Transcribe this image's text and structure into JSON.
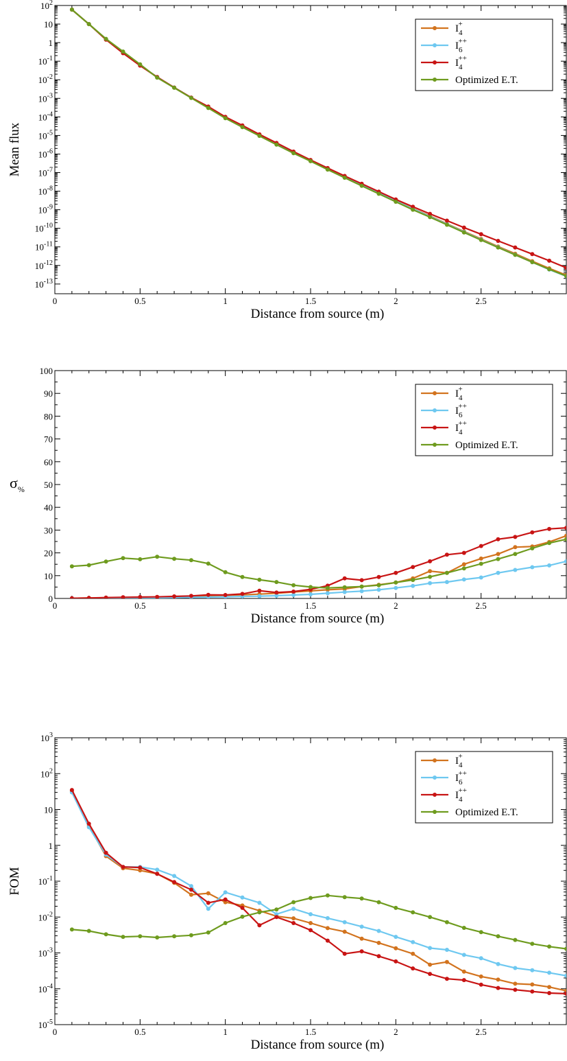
{
  "chart_data": [
    {
      "type": "line",
      "yscale": "log",
      "xlabel": "Distance from source (m)",
      "ylabel": "Mean flux",
      "xlim": [
        0,
        3.0
      ],
      "ylim": [
        3e-14,
        100
      ],
      "xticks": [
        "0",
        "0.5",
        "1",
        "1.5",
        "2",
        "2.5"
      ],
      "ytick_labels": [
        "10^2",
        "10",
        "1",
        "10^-1",
        "10^-2",
        "10^-3",
        "10^-4",
        "10^-5",
        "10^-6",
        "10^-7",
        "10^-8",
        "10^-9",
        "10^-10",
        "10^-11",
        "10^-12",
        "10^-13"
      ],
      "legend": "top-right",
      "x": [
        0.1,
        0.2,
        0.3,
        0.4,
        0.5,
        0.6,
        0.7,
        0.8,
        0.9,
        1.0,
        1.1,
        1.2,
        1.3,
        1.4,
        1.5,
        1.6,
        1.7,
        1.8,
        1.9,
        2.0,
        2.1,
        2.2,
        2.3,
        2.4,
        2.5,
        2.6,
        2.7,
        2.8,
        2.9,
        3.0
      ],
      "series": [
        {
          "name": "I4+",
          "color": "#d2731e",
          "values": [
            60,
            10,
            1.45,
            0.28,
            0.06,
            0.014,
            0.0038,
            0.0011,
            0.00033,
            9.5e-05,
            3.1e-05,
            1e-05,
            3.5e-06,
            1.2e-06,
            4.3e-07,
            1.5e-07,
            5.8e-08,
            2.2e-08,
            8e-09,
            3e-09,
            1.15e-09,
            4.6e-10,
            1.75e-10,
            6.8e-11,
            2.7e-11,
            1.05e-11,
            4.3e-12,
            1.7e-12,
            7e-13,
            3e-13
          ]
        },
        {
          "name": "I6++",
          "color": "#6ec8f0",
          "values": [
            60,
            10,
            1.5,
            0.28,
            0.06,
            0.014,
            0.0038,
            0.0011,
            0.00033,
            9.5e-05,
            3.1e-05,
            1e-05,
            3.5e-06,
            1.2e-06,
            4.3e-07,
            1.5e-07,
            5.7e-08,
            2.1e-08,
            7.8e-09,
            2.9e-09,
            1.1e-09,
            4.3e-10,
            1.65e-10,
            6.3e-11,
            2.45e-11,
            9.5e-12,
            3.8e-12,
            1.5e-12,
            6e-13,
            2.6e-13
          ]
        },
        {
          "name": "I4++",
          "color": "#c81414",
          "values": [
            60,
            10,
            1.45,
            0.27,
            0.058,
            0.014,
            0.0038,
            0.0011,
            0.00036,
            0.0001,
            3.5e-05,
            1.15e-05,
            4e-06,
            1.35e-06,
            4.8e-07,
            1.75e-07,
            6.6e-08,
            2.5e-08,
            9.4e-09,
            3.6e-09,
            1.45e-09,
            6e-10,
            2.6e-10,
            1.1e-10,
            4.8e-11,
            2.1e-11,
            9.3e-12,
            4.1e-12,
            1.8e-12,
            7.5e-13
          ]
        },
        {
          "name": "Optimized E.T.",
          "color": "#6e9b1e",
          "values": [
            60,
            10,
            1.6,
            0.33,
            0.068,
            0.013,
            0.0037,
            0.00105,
            0.0003,
            8.5e-05,
            2.8e-05,
            9.5e-06,
            3.2e-06,
            1.1e-06,
            4.1e-07,
            1.45e-07,
            5.3e-08,
            1.95e-08,
            7.2e-09,
            2.7e-09,
            1e-09,
            4e-10,
            1.55e-10,
            6e-11,
            2.35e-11,
            9.3e-12,
            3.7e-12,
            1.5e-12,
            6.2e-13,
            2.7e-13
          ]
        }
      ]
    },
    {
      "type": "line",
      "yscale": "linear",
      "xlabel": "Distance from source (m)",
      "ylabel": "σ%",
      "xlim": [
        0,
        3.0
      ],
      "ylim": [
        0,
        100
      ],
      "xticks": [
        "0",
        "0.5",
        "1",
        "1.5",
        "2",
        "2.5"
      ],
      "ytick_labels": [
        "0",
        "10",
        "20",
        "30",
        "40",
        "50",
        "60",
        "70",
        "80",
        "90",
        "100"
      ],
      "legend": "top-right",
      "x": [
        0.1,
        0.2,
        0.3,
        0.4,
        0.5,
        0.6,
        0.7,
        0.8,
        0.9,
        1.0,
        1.1,
        1.2,
        1.3,
        1.4,
        1.5,
        1.6,
        1.7,
        1.8,
        1.9,
        2.0,
        2.1,
        2.2,
        2.3,
        2.4,
        2.5,
        2.6,
        2.7,
        2.8,
        2.9,
        3.0
      ],
      "series": [
        {
          "name": "I4+",
          "color": "#d2731e",
          "values": [
            0.1,
            0.2,
            0.3,
            0.4,
            0.5,
            0.6,
            0.8,
            1.0,
            1.2,
            1.4,
            1.6,
            1.9,
            2.3,
            2.8,
            3.3,
            3.8,
            4.2,
            5.2,
            6.0,
            7.0,
            8.8,
            12.0,
            11.2,
            15.0,
            17.5,
            19.5,
            22.5,
            22.8,
            24.8,
            27.5
          ]
        },
        {
          "name": "I6++",
          "color": "#6ec8f0",
          "values": [
            0.1,
            0.1,
            0.2,
            0.2,
            0.3,
            0.3,
            0.4,
            0.5,
            0.6,
            0.7,
            0.9,
            1.0,
            1.2,
            1.5,
            1.8,
            2.3,
            2.8,
            3.2,
            3.8,
            4.6,
            5.5,
            6.7,
            7.2,
            8.3,
            9.2,
            11.2,
            12.5,
            13.7,
            14.5,
            16.3
          ]
        },
        {
          "name": "I4++",
          "color": "#c81414",
          "values": [
            0.1,
            0.2,
            0.4,
            0.5,
            0.6,
            0.7,
            0.9,
            1.1,
            1.6,
            1.5,
            2.0,
            3.4,
            2.6,
            3.0,
            4.0,
            5.6,
            8.8,
            8.0,
            9.4,
            11.2,
            13.8,
            16.3,
            19.2,
            20.0,
            23.0,
            26.0,
            27.0,
            29.0,
            30.5,
            31.0
          ]
        },
        {
          "name": "Optimized E.T.",
          "color": "#6e9b1e",
          "values": [
            14.1,
            14.6,
            16.2,
            17.7,
            17.2,
            18.3,
            17.4,
            16.8,
            15.3,
            11.5,
            9.4,
            8.2,
            7.2,
            5.8,
            5.0,
            4.6,
            4.9,
            5.2,
            5.8,
            7.0,
            8.1,
            9.5,
            11.2,
            13.2,
            15.2,
            17.3,
            19.5,
            22.0,
            24.3,
            26.0
          ]
        }
      ]
    },
    {
      "type": "line",
      "yscale": "log",
      "xlabel": "Distance from source (m)",
      "ylabel": "FOM",
      "xlim": [
        0,
        3.0
      ],
      "ylim": [
        1e-05,
        1000
      ],
      "xticks": [
        "0",
        "0.5",
        "1",
        "1.5",
        "2",
        "2.5"
      ],
      "ytick_labels": [
        "10^3",
        "10^2",
        "10",
        "1",
        "10^-1",
        "10^-2",
        "10^-3",
        "10^-4",
        "10^-5"
      ],
      "legend": "top-right",
      "x": [
        0.1,
        0.2,
        0.3,
        0.4,
        0.5,
        0.6,
        0.7,
        0.8,
        0.9,
        1.0,
        1.1,
        1.2,
        1.3,
        1.4,
        1.5,
        1.6,
        1.7,
        1.8,
        1.9,
        2.0,
        2.1,
        2.2,
        2.3,
        2.4,
        2.5,
        2.6,
        2.7,
        2.8,
        2.9,
        3.0
      ],
      "series": [
        {
          "name": "I4+",
          "color": "#d2731e",
          "values": [
            32,
            3.5,
            0.5,
            0.23,
            0.2,
            0.16,
            0.09,
            0.042,
            0.046,
            0.026,
            0.021,
            0.015,
            0.0105,
            0.0092,
            0.0068,
            0.0049,
            0.0039,
            0.0025,
            0.0019,
            0.00135,
            0.00095,
            0.00047,
            0.00056,
            0.0003,
            0.00022,
            0.00018,
            0.000138,
            0.000132,
            0.000112,
            8.8e-05
          ]
        },
        {
          "name": "I6++",
          "color": "#6ec8f0",
          "values": [
            30,
            3.2,
            0.55,
            0.25,
            0.25,
            0.21,
            0.14,
            0.073,
            0.017,
            0.049,
            0.035,
            0.025,
            0.012,
            0.017,
            0.012,
            0.0093,
            0.0072,
            0.0054,
            0.0041,
            0.0028,
            0.002,
            0.00137,
            0.00122,
            0.00088,
            0.00071,
            0.00049,
            0.00038,
            0.00033,
            0.00028,
            0.00023
          ]
        },
        {
          "name": "I4++",
          "color": "#c81414",
          "values": [
            35,
            4.0,
            0.62,
            0.25,
            0.24,
            0.16,
            0.095,
            0.058,
            0.025,
            0.031,
            0.018,
            0.0059,
            0.01,
            0.0068,
            0.0043,
            0.0022,
            0.00095,
            0.0011,
            0.00081,
            0.00058,
            0.00037,
            0.00026,
            0.00019,
            0.000175,
            0.00013,
            0.000105,
            9.4e-05,
            8.4e-05,
            7.6e-05,
            7.3e-05
          ]
        },
        {
          "name": "Optimized E.T.",
          "color": "#6e9b1e",
          "values": [
            0.0045,
            0.0041,
            0.0033,
            0.0028,
            0.0029,
            0.0027,
            0.0029,
            0.0031,
            0.0037,
            0.0068,
            0.0102,
            0.0135,
            0.0163,
            0.026,
            0.034,
            0.04,
            0.036,
            0.033,
            0.026,
            0.018,
            0.0135,
            0.01,
            0.0072,
            0.005,
            0.0038,
            0.0029,
            0.0023,
            0.0018,
            0.0015,
            0.0013
          ]
        }
      ]
    }
  ]
}
